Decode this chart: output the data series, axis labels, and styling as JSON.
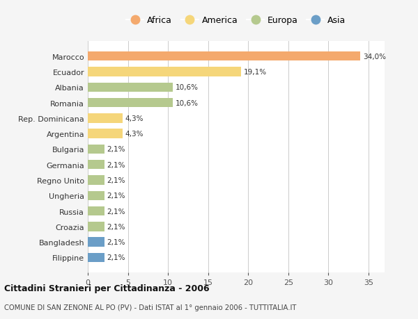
{
  "countries": [
    "Marocco",
    "Ecuador",
    "Albania",
    "Romania",
    "Rep. Dominicana",
    "Argentina",
    "Bulgaria",
    "Germania",
    "Regno Unito",
    "Ungheria",
    "Russia",
    "Croazia",
    "Bangladesh",
    "Filippine"
  ],
  "values": [
    34.0,
    19.1,
    10.6,
    10.6,
    4.3,
    4.3,
    2.1,
    2.1,
    2.1,
    2.1,
    2.1,
    2.1,
    2.1,
    2.1
  ],
  "labels": [
    "34,0%",
    "19,1%",
    "10,6%",
    "10,6%",
    "4,3%",
    "4,3%",
    "2,1%",
    "2,1%",
    "2,1%",
    "2,1%",
    "2,1%",
    "2,1%",
    "2,1%",
    "2,1%"
  ],
  "continents": [
    "Africa",
    "America",
    "Europa",
    "Europa",
    "America",
    "America",
    "Europa",
    "Europa",
    "Europa",
    "Europa",
    "Europa",
    "Europa",
    "Asia",
    "Asia"
  ],
  "colors": {
    "Africa": "#F4A96D",
    "America": "#F5D67A",
    "Europa": "#B5C98E",
    "Asia": "#6B9EC7"
  },
  "legend_order": [
    "Africa",
    "America",
    "Europa",
    "Asia"
  ],
  "title_bold": "Cittadini Stranieri per Cittadinanza - 2006",
  "title_sub": "COMUNE DI SAN ZENONE AL PO (PV) - Dati ISTAT al 1° gennaio 2006 - TUTTITALIA.IT",
  "xlim": [
    0,
    37
  ],
  "xticks": [
    0,
    5,
    10,
    15,
    20,
    25,
    30,
    35
  ],
  "background_color": "#f5f5f5",
  "plot_bg_color": "#ffffff",
  "bar_height": 0.6
}
